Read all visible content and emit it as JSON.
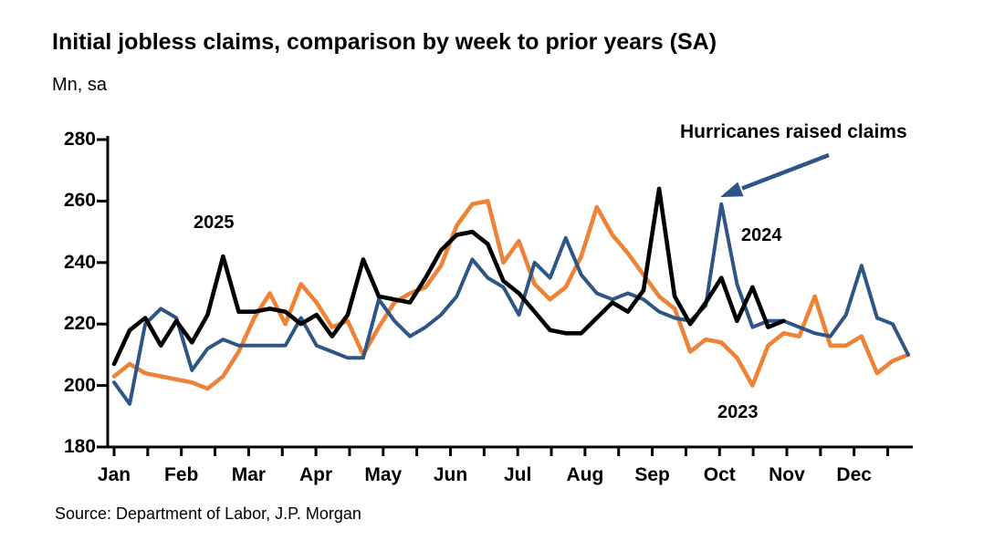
{
  "header": {
    "title": "Initial jobless claims, comparison by week to prior years (SA)",
    "units_label": "Mn, sa"
  },
  "source_line": "Source: Department of Labor, J.P. Morgan",
  "annotation": {
    "text": "Hurricanes raised claims"
  },
  "colors": {
    "black_2025": "#000000",
    "blue_2024": "#2e5585",
    "orange_2023": "#ee8338",
    "axis": "#000000"
  },
  "chart_data": {
    "type": "line",
    "title": "Initial jobless claims, comparison by week to prior years (SA)",
    "ylabel": "Mn, sa",
    "xlabel": "",
    "x_unit": "week_of_year",
    "x_range": [
      1,
      52
    ],
    "ylim": [
      180,
      280
    ],
    "y_ticks": [
      180,
      200,
      220,
      240,
      260,
      280
    ],
    "x_tick_labels": [
      "Jan",
      "Feb",
      "Mar",
      "Apr",
      "May",
      "Jun",
      "Jul",
      "Aug",
      "Sep",
      "Oct",
      "Nov",
      "Dec"
    ],
    "grid": false,
    "legend_position": "inline-labels",
    "series": [
      {
        "name": "2023",
        "color": "#ee8338",
        "start_week": 1,
        "values": [
          203,
          207,
          204,
          203,
          202,
          201,
          199,
          203,
          211,
          222,
          230,
          220,
          233,
          227,
          219,
          221,
          210,
          219,
          227,
          230,
          232,
          239,
          252,
          259,
          260,
          240,
          247,
          233,
          228,
          232,
          242,
          258,
          249,
          243,
          236,
          229,
          225,
          211,
          215,
          214,
          209,
          200,
          213,
          217,
          216,
          229,
          213,
          213,
          216,
          204,
          208,
          210
        ]
      },
      {
        "name": "2024",
        "color": "#2e5585",
        "start_week": 1,
        "values": [
          201,
          194,
          220,
          225,
          222,
          205,
          212,
          215,
          213,
          213,
          213,
          213,
          222,
          213,
          211,
          209,
          209,
          228,
          221,
          216,
          219,
          223,
          229,
          241,
          235,
          232,
          223,
          240,
          235,
          248,
          236,
          230,
          228,
          230,
          228,
          224,
          222,
          221,
          226,
          259,
          233,
          219,
          221,
          221,
          219,
          217,
          216,
          223,
          239,
          222,
          220,
          210
        ]
      },
      {
        "name": "2025",
        "color": "#000000",
        "start_week": 1,
        "values": [
          207,
          218,
          222,
          213,
          221,
          214,
          223,
          242,
          224,
          224,
          225,
          224,
          220,
          223,
          216,
          223,
          241,
          229,
          228,
          227,
          235,
          244,
          249,
          250,
          246,
          234,
          230,
          224,
          218,
          217,
          217,
          222,
          227,
          224,
          231,
          264,
          229,
          220,
          227,
          235,
          221,
          232,
          219,
          221
        ]
      }
    ],
    "annotations": [
      {
        "text": "Hurricanes raised claims",
        "points_to": {
          "series": "2024",
          "week": 40,
          "value": 259
        }
      },
      {
        "text": "2025",
        "type": "series-label"
      },
      {
        "text": "2024",
        "type": "series-label"
      },
      {
        "text": "2023",
        "type": "series-label"
      }
    ]
  }
}
